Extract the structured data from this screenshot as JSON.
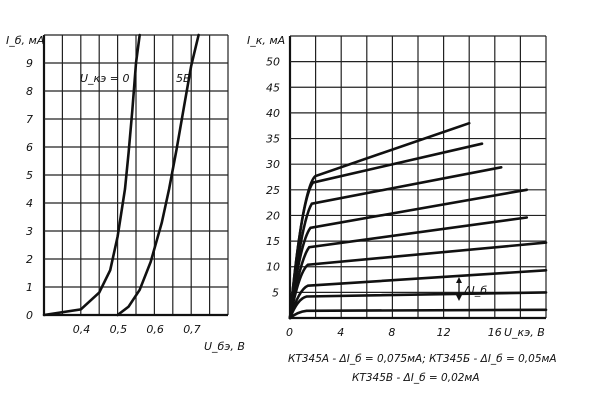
{
  "chart_data": [
    {
      "type": "line",
      "ylabel": "I_б, мА",
      "xlabel": "U_бэ, В",
      "xlim": [
        0.3,
        0.8
      ],
      "ylim": [
        0,
        10
      ],
      "x_ticks": [
        "0,4",
        "0,5",
        "0,6",
        "0,7"
      ],
      "y_ticks": [
        "0",
        "1",
        "2",
        "3",
        "4",
        "5",
        "6",
        "7",
        "8",
        "9"
      ],
      "grid": true,
      "annotations": [
        "U_кэ = 0",
        "5В"
      ],
      "series": [
        {
          "name": "U_кэ = 0",
          "x": [
            0.3,
            0.4,
            0.45,
            0.48,
            0.5,
            0.52,
            0.53,
            0.54,
            0.55,
            0.56
          ],
          "y": [
            0,
            0.2,
            0.8,
            1.6,
            2.8,
            4.5,
            5.8,
            7.3,
            9.0,
            10.0
          ]
        },
        {
          "name": "5В",
          "x": [
            0.5,
            0.53,
            0.56,
            0.59,
            0.62,
            0.64,
            0.66,
            0.68,
            0.7,
            0.72
          ],
          "y": [
            0,
            0.3,
            0.9,
            1.9,
            3.3,
            4.5,
            5.9,
            7.4,
            8.9,
            10.0
          ]
        }
      ]
    },
    {
      "type": "line",
      "ylabel": "I_к, мА",
      "xlabel": "U_кэ, В",
      "xlim": [
        0,
        20
      ],
      "ylim": [
        0,
        55
      ],
      "x_ticks": [
        "0",
        "4",
        "8",
        "12",
        "16"
      ],
      "y_ticks": [
        "5",
        "10",
        "15",
        "20",
        "25",
        "30",
        "35",
        "40",
        "45",
        "50"
      ],
      "grid": true,
      "delta_label": "ΔI_б",
      "notes": [
        "КТ345А - ΔI_б = 0,075мА; КТ345Б - ΔI_б = 0,05мА",
        "КТ345В - ΔI_б = 0,02мА"
      ],
      "series": [
        {
          "name": "",
          "x": [
            0,
            0.6,
            1.3,
            20
          ],
          "y": [
            0,
            1.2,
            1.4,
            1.6
          ]
        },
        {
          "name": "",
          "x": [
            0,
            0.6,
            1.3,
            20
          ],
          "y": [
            0,
            3.8,
            4.2,
            5.0
          ]
        },
        {
          "name": "",
          "x": [
            0,
            0.7,
            1.4,
            20
          ],
          "y": [
            0,
            5.6,
            6.3,
            9.3
          ]
        },
        {
          "name": "",
          "x": [
            0,
            0.7,
            1.4,
            20
          ],
          "y": [
            0,
            9.0,
            10.4,
            14.7
          ]
        },
        {
          "name": "",
          "x": [
            0,
            0.8,
            1.5,
            18.5
          ],
          "y": [
            0,
            11.5,
            13.8,
            19.6
          ]
        },
        {
          "name": "",
          "x": [
            0,
            0.8,
            1.6,
            18.5
          ],
          "y": [
            0,
            15.0,
            17.6,
            25.0
          ]
        },
        {
          "name": "",
          "x": [
            0,
            0.9,
            1.7,
            16.5
          ],
          "y": [
            0,
            19.0,
            22.3,
            29.4
          ]
        },
        {
          "name": "",
          "x": [
            0,
            0.9,
            1.8,
            15
          ],
          "y": [
            0,
            23.5,
            26.4,
            34.0
          ]
        },
        {
          "name": "",
          "x": [
            0,
            1.0,
            2.0,
            14
          ],
          "y": [
            0,
            26.0,
            27.7,
            38.0
          ]
        }
      ]
    }
  ]
}
